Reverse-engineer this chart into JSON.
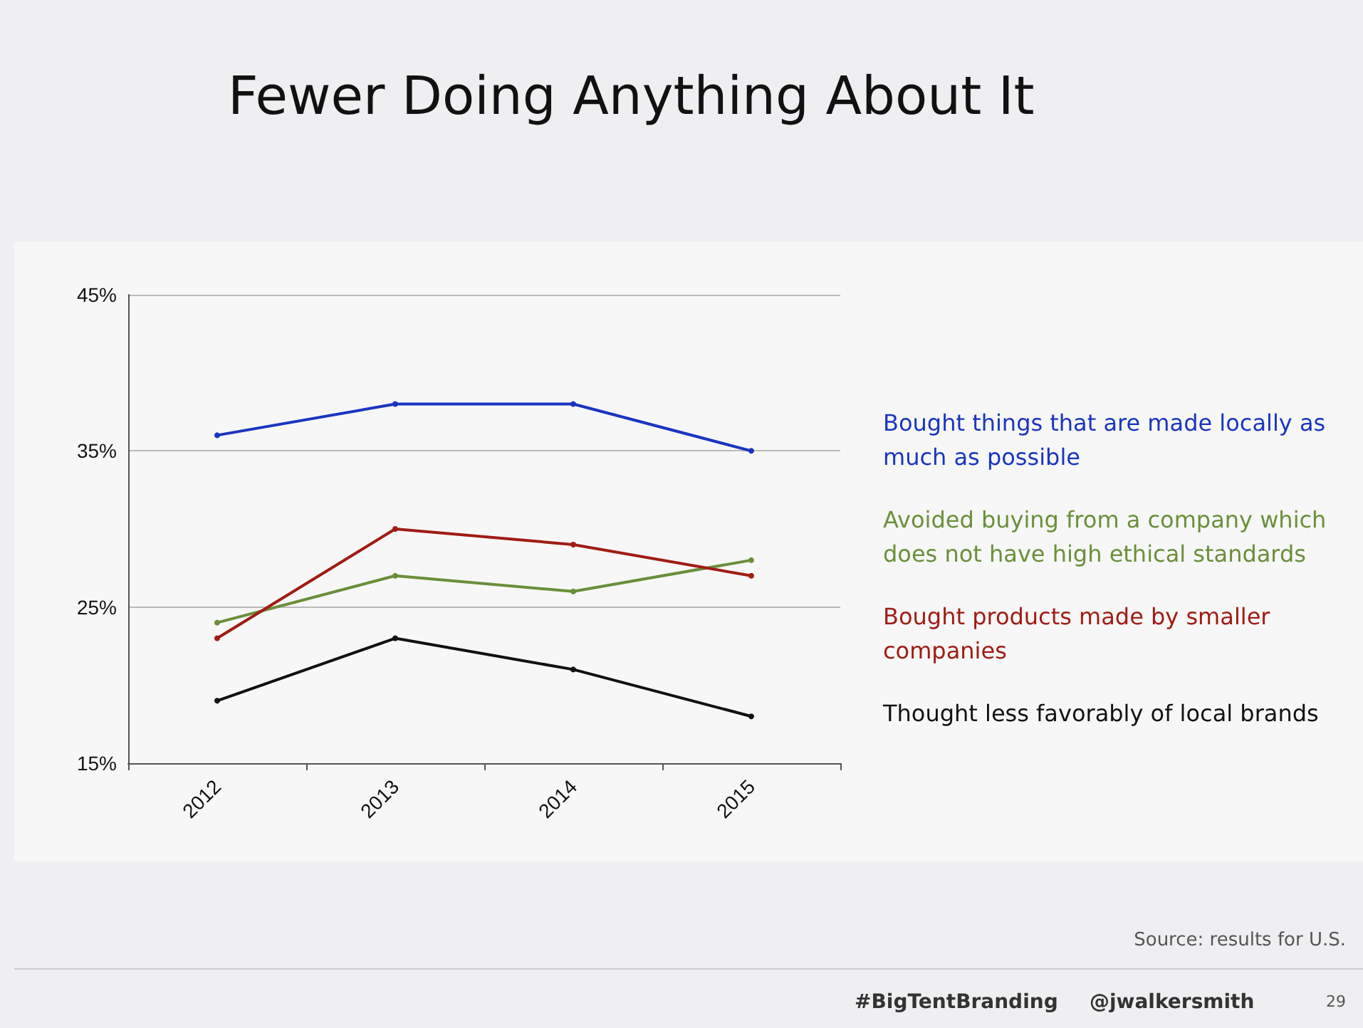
{
  "chart_data": {
    "type": "line",
    "title": "Fewer Doing Anything About It",
    "categories": [
      "2012",
      "2013",
      "2014",
      "2015"
    ],
    "series": [
      {
        "name": "Bought things that are made locally as much as possible",
        "color": "#1a35c0",
        "values": [
          36,
          38,
          38,
          35
        ]
      },
      {
        "name": "Avoided buying from a company which does not have high ethical standards",
        "color": "#6b8f3a",
        "values": [
          24,
          27,
          26,
          28
        ]
      },
      {
        "name": "Bought products made by smaller companies",
        "color": "#a01c14",
        "values": [
          23,
          30,
          29,
          27
        ]
      },
      {
        "name": "Thought less favorably of local brands",
        "color": "#111111",
        "values": [
          19,
          23,
          21,
          18
        ]
      }
    ],
    "ylim": [
      15,
      45
    ],
    "yticks": [
      {
        "value": 15,
        "label": "15%"
      },
      {
        "value": 25,
        "label": "25%"
      },
      {
        "value": 35,
        "label": "35%"
      },
      {
        "value": 45,
        "label": "45%"
      }
    ],
    "grid": "y",
    "legend": "right",
    "marker": "circle",
    "line_style": "solid",
    "annotations": [
      "Source: results for U.S.",
      "#BigTentBranding",
      "@jwalkersmith",
      "29"
    ]
  }
}
